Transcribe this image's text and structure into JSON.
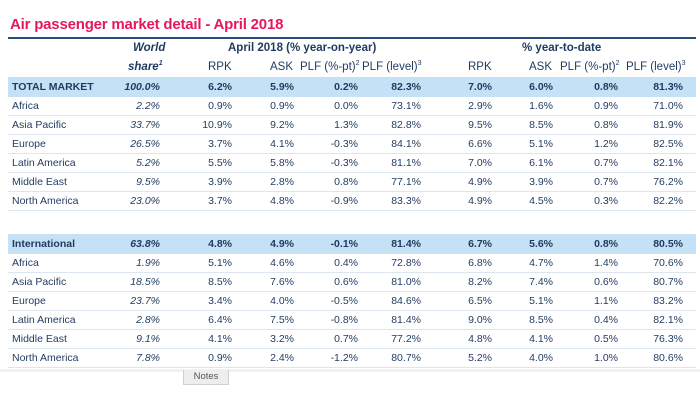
{
  "title": "Air passenger market detail - April 2018",
  "header": {
    "world": "World",
    "share": "share",
    "share_sup": "1",
    "yoy_group": "April 2018 (% year-on-year)",
    "ytd_group": "% year-to-date",
    "rpk": "RPK",
    "ask": "ASK",
    "plf_pt": "PLF (%-pt)",
    "plf_pt_sup": "2",
    "plf_level": "PLF (level)",
    "plf_level_sup": "3"
  },
  "colors": {
    "title": "#e8175d",
    "highlight": "#c5e1f5",
    "text": "#1f3a5f"
  },
  "rows": [
    {
      "label": "TOTAL MARKET",
      "highlight": true,
      "values": [
        "100.0%",
        "6.2%",
        "5.9%",
        "0.2%",
        "82.3%",
        "7.0%",
        "6.0%",
        "0.8%",
        "81.3%"
      ]
    },
    {
      "label": "Africa",
      "values": [
        "2.2%",
        "0.9%",
        "0.9%",
        "0.0%",
        "73.1%",
        "2.9%",
        "1.6%",
        "0.9%",
        "71.0%"
      ]
    },
    {
      "label": "Asia Pacific",
      "values": [
        "33.7%",
        "10.9%",
        "9.2%",
        "1.3%",
        "82.8%",
        "9.5%",
        "8.5%",
        "0.8%",
        "81.9%"
      ]
    },
    {
      "label": "Europe",
      "values": [
        "26.5%",
        "3.7%",
        "4.1%",
        "-0.3%",
        "84.1%",
        "6.6%",
        "5.1%",
        "1.2%",
        "82.5%"
      ]
    },
    {
      "label": "Latin America",
      "values": [
        "5.2%",
        "5.5%",
        "5.8%",
        "-0.3%",
        "81.1%",
        "7.0%",
        "6.1%",
        "0.7%",
        "82.1%"
      ]
    },
    {
      "label": "Middle East",
      "values": [
        "9.5%",
        "3.9%",
        "2.8%",
        "0.8%",
        "77.1%",
        "4.9%",
        "3.9%",
        "0.7%",
        "76.2%"
      ]
    },
    {
      "label": "North America",
      "values": [
        "23.0%",
        "3.7%",
        "4.8%",
        "-0.9%",
        "83.3%",
        "4.9%",
        "4.5%",
        "0.3%",
        "82.2%"
      ]
    },
    {
      "label": "International",
      "highlight": true,
      "values": [
        "63.8%",
        "4.8%",
        "4.9%",
        "-0.1%",
        "81.4%",
        "6.7%",
        "5.6%",
        "0.8%",
        "80.5%"
      ]
    },
    {
      "label": "Africa",
      "values": [
        "1.9%",
        "5.1%",
        "4.6%",
        "0.4%",
        "72.8%",
        "6.8%",
        "4.7%",
        "1.4%",
        "70.6%"
      ]
    },
    {
      "label": "Asia Pacific",
      "values": [
        "18.5%",
        "8.5%",
        "7.6%",
        "0.6%",
        "81.0%",
        "8.2%",
        "7.4%",
        "0.6%",
        "80.7%"
      ]
    },
    {
      "label": "Europe",
      "values": [
        "23.7%",
        "3.4%",
        "4.0%",
        "-0.5%",
        "84.6%",
        "6.5%",
        "5.1%",
        "1.1%",
        "83.2%"
      ]
    },
    {
      "label": "Latin America",
      "values": [
        "2.8%",
        "6.4%",
        "7.5%",
        "-0.8%",
        "81.4%",
        "9.0%",
        "8.5%",
        "0.4%",
        "82.1%"
      ]
    },
    {
      "label": "Middle East",
      "values": [
        "9.1%",
        "4.1%",
        "3.2%",
        "0.7%",
        "77.2%",
        "4.8%",
        "4.1%",
        "0.5%",
        "76.3%"
      ]
    },
    {
      "label": "North America",
      "values": [
        "7.8%",
        "0.9%",
        "2.4%",
        "-1.2%",
        "80.7%",
        "5.2%",
        "4.0%",
        "1.0%",
        "80.6%"
      ]
    }
  ],
  "notes_tab": "Notes"
}
